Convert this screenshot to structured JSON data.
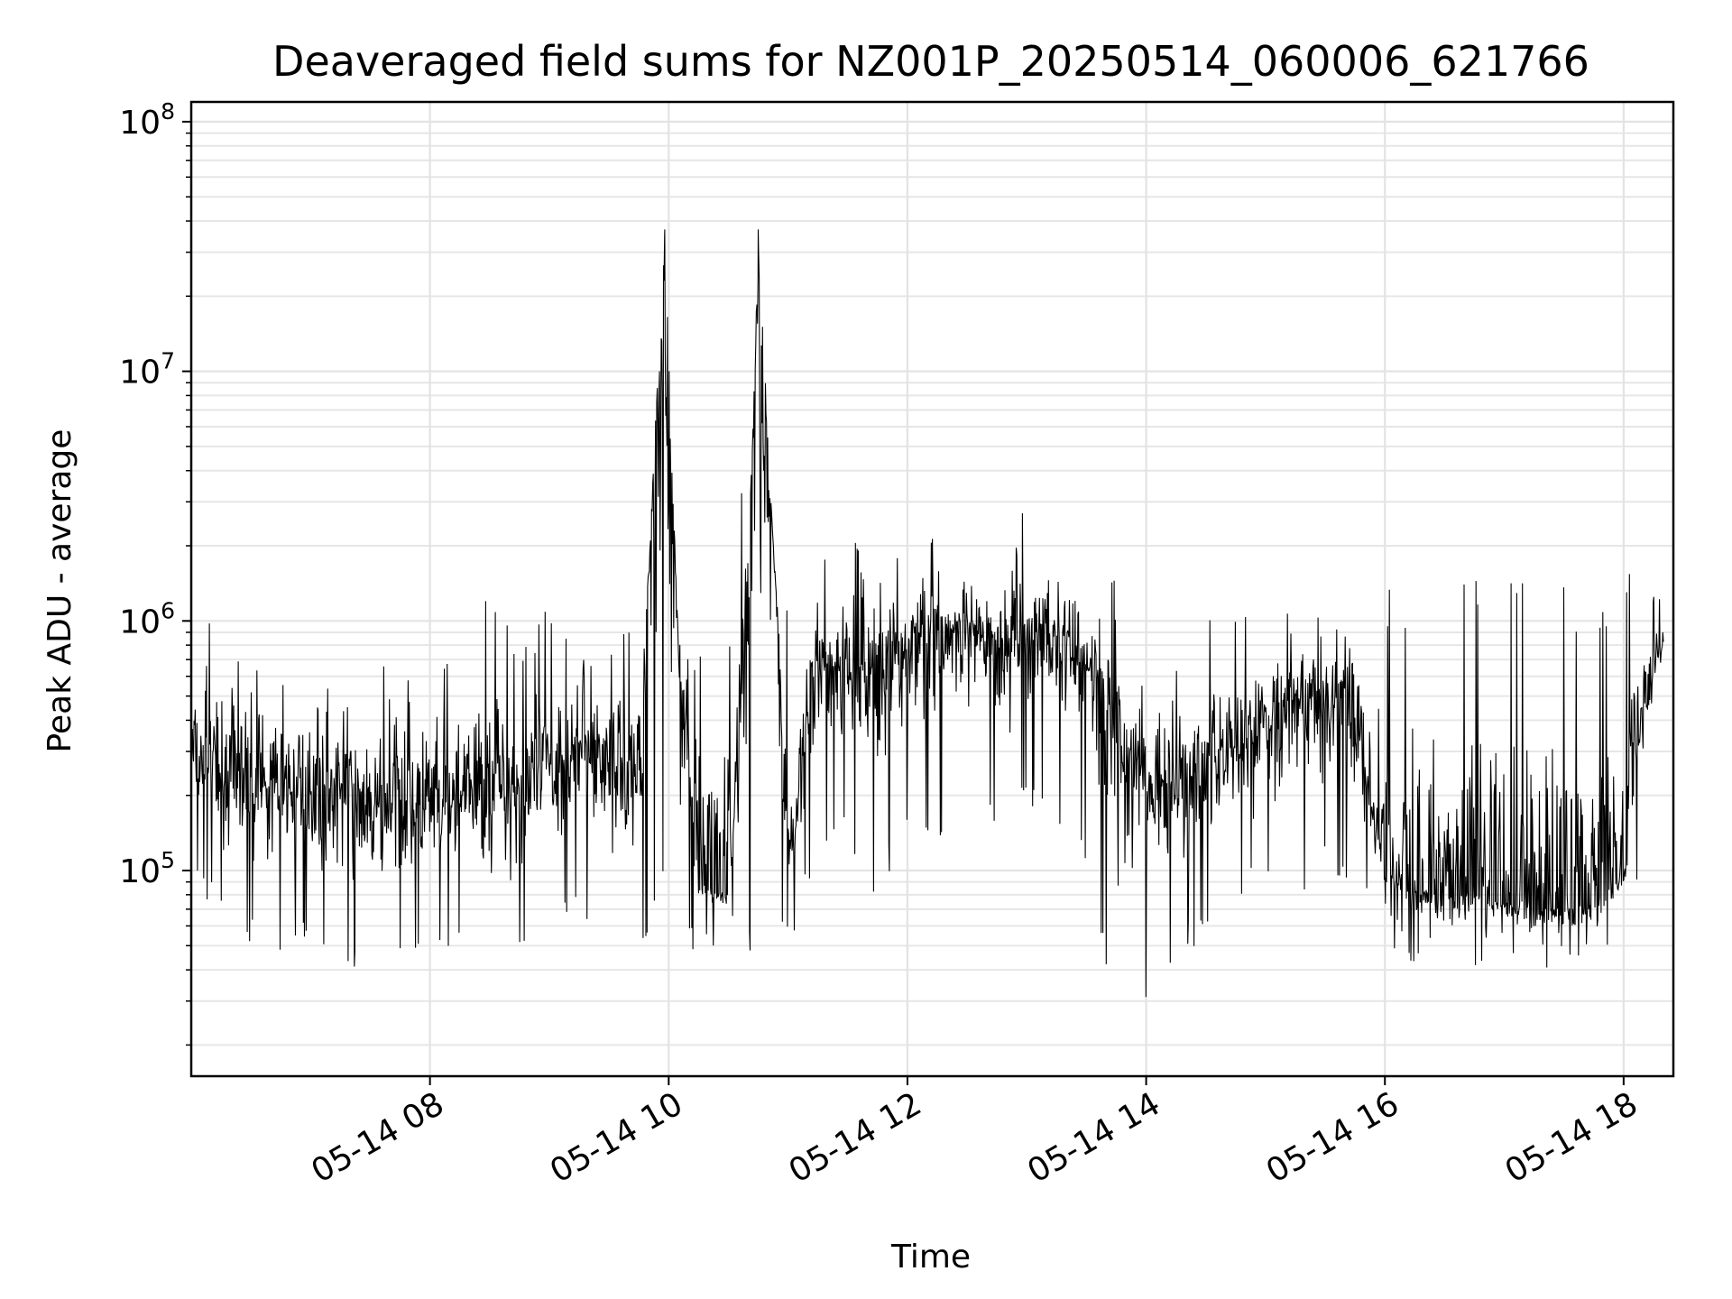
{
  "chart_data": {
    "type": "line",
    "title": "Deaveraged field sums for NZ001P_20250514_060006_621766",
    "xlabel": "Time",
    "ylabel": "Peak ADU - average",
    "x_axis": {
      "type": "time",
      "range": [
        "2025-05-14 06:00",
        "2025-05-14 18:25"
      ],
      "ticks": [
        "2025-05-14 08:00",
        "2025-05-14 10:00",
        "2025-05-14 12:00",
        "2025-05-14 14:00",
        "2025-05-14 16:00",
        "2025-05-14 18:00"
      ],
      "tick_labels": [
        "05-14 08",
        "05-14 10",
        "05-14 12",
        "05-14 14",
        "05-14 16",
        "05-14 18"
      ]
    },
    "y_axis": {
      "scale": "log",
      "range": [
        15000,
        120000000
      ],
      "ticks": [
        100000,
        1000000,
        10000000,
        100000000
      ],
      "tick_labels": [
        {
          "base": "10",
          "exp": "5"
        },
        {
          "base": "10",
          "exp": "6"
        },
        {
          "base": "10",
          "exp": "7"
        },
        {
          "base": "10",
          "exp": "8"
        }
      ]
    },
    "grid": true,
    "legend": "none",
    "series": [
      {
        "color": "#000000",
        "x": [
          "2025-05-14 06:00",
          "2025-05-14 06:15",
          "2025-05-14 06:30",
          "2025-05-14 06:45",
          "2025-05-14 07:00",
          "2025-05-14 07:15",
          "2025-05-14 07:30",
          "2025-05-14 07:45",
          "2025-05-14 08:00",
          "2025-05-14 08:15",
          "2025-05-14 08:30",
          "2025-05-14 08:45",
          "2025-05-14 09:00",
          "2025-05-14 09:15",
          "2025-05-14 09:30",
          "2025-05-14 09:45",
          "2025-05-14 09:58",
          "2025-05-14 10:05",
          "2025-05-14 10:15",
          "2025-05-14 10:30",
          "2025-05-14 10:40",
          "2025-05-14 10:45",
          "2025-05-14 11:00",
          "2025-05-14 11:15",
          "2025-05-14 11:30",
          "2025-05-14 11:45",
          "2025-05-14 12:00",
          "2025-05-14 12:15",
          "2025-05-14 12:30",
          "2025-05-14 12:45",
          "2025-05-14 13:00",
          "2025-05-14 13:15",
          "2025-05-14 13:30",
          "2025-05-14 13:45",
          "2025-05-14 14:00",
          "2025-05-14 14:15",
          "2025-05-14 14:30",
          "2025-05-14 14:45",
          "2025-05-14 15:00",
          "2025-05-14 15:15",
          "2025-05-14 15:30",
          "2025-05-14 15:45",
          "2025-05-14 16:00",
          "2025-05-14 16:15",
          "2025-05-14 16:30",
          "2025-05-14 16:45",
          "2025-05-14 17:00",
          "2025-05-14 17:15",
          "2025-05-14 17:30",
          "2025-05-14 17:45",
          "2025-05-14 18:00",
          "2025-05-14 18:10",
          "2025-05-14 18:20"
        ],
        "y": [
          280000,
          250000,
          220000,
          240000,
          200000,
          220000,
          180000,
          200000,
          170000,
          190000,
          230000,
          210000,
          250000,
          320000,
          280000,
          260000,
          37000000,
          700000,
          90000,
          80000,
          1500000,
          37000000,
          110000,
          700000,
          600000,
          650000,
          800000,
          900000,
          850000,
          800000,
          900000,
          850000,
          700000,
          400000,
          200000,
          230000,
          280000,
          320000,
          400000,
          450000,
          500000,
          480000,
          100000,
          85000,
          80000,
          80000,
          75000,
          70000,
          72000,
          75000,
          95000,
          500000,
          850000
        ],
        "envelope_low": [
          120000,
          70000,
          60000,
          50000,
          60000,
          45000,
          40000,
          45000,
          50000,
          60000,
          50000,
          45000,
          60000,
          80000,
          60000,
          55000,
          90000,
          50000,
          55000,
          60000,
          55000,
          60000,
          55000,
          120000,
          150000,
          90000,
          160000,
          150000,
          140000,
          170000,
          200000,
          180000,
          120000,
          25000,
          30000,
          50000,
          60000,
          90000,
          90000,
          90000,
          110000,
          90000,
          60000,
          50000,
          45000,
          45000,
          50000,
          50000,
          45000,
          50000,
          55000,
          150000,
          550000
        ],
        "envelope_high": [
          900000,
          1100000,
          1150000,
          600000,
          550000,
          600000,
          500000,
          950000,
          1000000,
          600000,
          1700000,
          800000,
          1200000,
          1300000,
          900000,
          1000000,
          1300000,
          1100000,
          900000,
          4000000,
          3000000,
          4300000,
          1200000,
          1800000,
          2100000,
          2200000,
          2500000,
          2500000,
          2300000,
          2200000,
          3000000,
          2200000,
          2600000,
          1400000,
          650000,
          800000,
          1000000,
          1200000,
          1300000,
          1100000,
          1400000,
          1300000,
          1500000,
          1500000,
          1500000,
          1500000,
          1500000,
          1500000,
          1500000,
          1500000,
          1500000,
          2100000,
          1100000
        ]
      }
    ]
  }
}
